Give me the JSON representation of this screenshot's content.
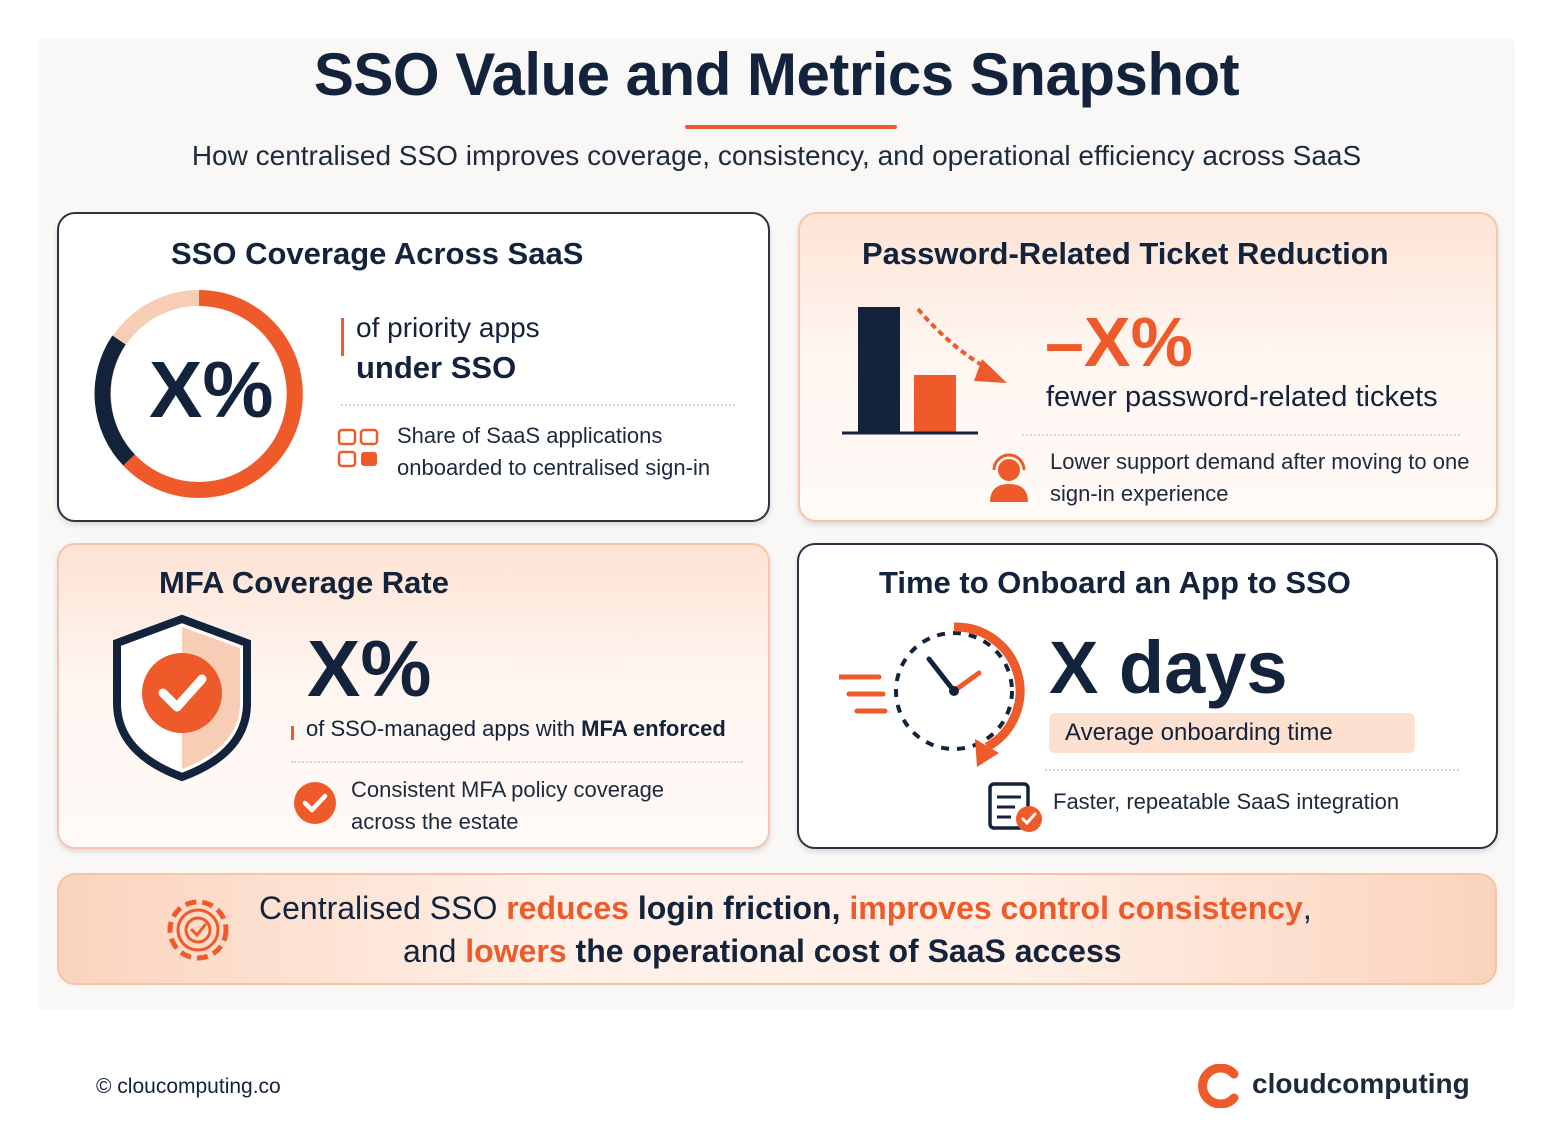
{
  "header": {
    "title": "SSO Value and Metrics Snapshot",
    "subtitle": "How centralised SSO improves coverage, consistency, and operational efficiency across SaaS"
  },
  "cards": [
    {
      "title": "SSO Coverage Across SaaS",
      "metric": "X%",
      "lead": "of priority apps",
      "lead_bold": "under SSO",
      "note": "Share of SaaS applications onboarded to centralised sign-in"
    },
    {
      "title": "Password-Related Ticket Reduction",
      "metric": "–X%",
      "caption": "fewer password-related tickets",
      "note": "Lower support demand after moving to one sign-in experience"
    },
    {
      "title": "MFA Coverage Rate",
      "metric": "X%",
      "caption": "of SSO-managed apps with",
      "caption_bold": "MFA enforced",
      "note": "Consistent MFA policy coverage across the estate"
    },
    {
      "title": "Time to Onboard an App to SSO",
      "metric": "X days",
      "badge": "Average onboarding time",
      "note": "Faster, repeatable SaaS integration"
    }
  ],
  "banner": {
    "line1": [
      "Centralised SSO",
      "reduces",
      "login friction,",
      "improves control consistency",
      ","
    ],
    "line2": [
      "and",
      "lowers",
      "the operational cost of SaaS access"
    ]
  },
  "footer": {
    "copyright": "© cloucomputing.co",
    "brand": "cloudcomputing"
  }
}
